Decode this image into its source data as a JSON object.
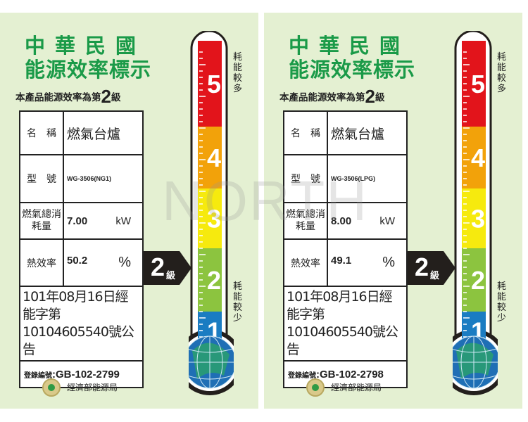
{
  "labels": [
    {
      "title1": "中華民國",
      "title2": "能源效率標示",
      "subtitle_prefix": "本產品能源效率為第",
      "grade": "2",
      "grade_suffix": "級",
      "rows": {
        "name_label": "名　稱",
        "name_value": "燃氣台爐",
        "model_label": "型　號",
        "model_value": "WG-3506(NG1)",
        "consumption_label": "燃氣總消耗量",
        "consumption_value": "7.00",
        "consumption_unit": "kW",
        "efficiency_label": "熱效率",
        "efficiency_value": "50.2",
        "efficiency_unit": "%"
      },
      "announcement": "101年08月16日經能字第10104605540號公告",
      "reg_label": "登錄編號",
      "reg_value": ":GB-102-2799"
    },
    {
      "title1": "中華民國",
      "title2": "能源效率標示",
      "subtitle_prefix": "本產品能源效率為第",
      "grade": "2",
      "grade_suffix": "級",
      "rows": {
        "name_label": "名　稱",
        "name_value": "燃氣台爐",
        "model_label": "型　號",
        "model_value": "WG-3506(LPG)",
        "consumption_label": "燃氣總消耗量",
        "consumption_value": "8.00",
        "consumption_unit": "kW",
        "efficiency_label": "熱效率",
        "efficiency_value": "49.1",
        "efficiency_unit": "%"
      },
      "announcement": "101年08月16日經能字第10104605540號公告",
      "reg_label": "登錄編號",
      "reg_value": ":GB-102-2798"
    }
  ],
  "agency": "經濟部能源局",
  "scale_top": "耗能較多",
  "scale_bottom": "耗能較少",
  "levels": [
    "5",
    "4",
    "3",
    "2",
    "1"
  ],
  "level_colors": [
    "#e2141b",
    "#f2a20a",
    "#f6ea0e",
    "#8cc43f",
    "#1a7cc2"
  ],
  "watermark": "NORTH"
}
